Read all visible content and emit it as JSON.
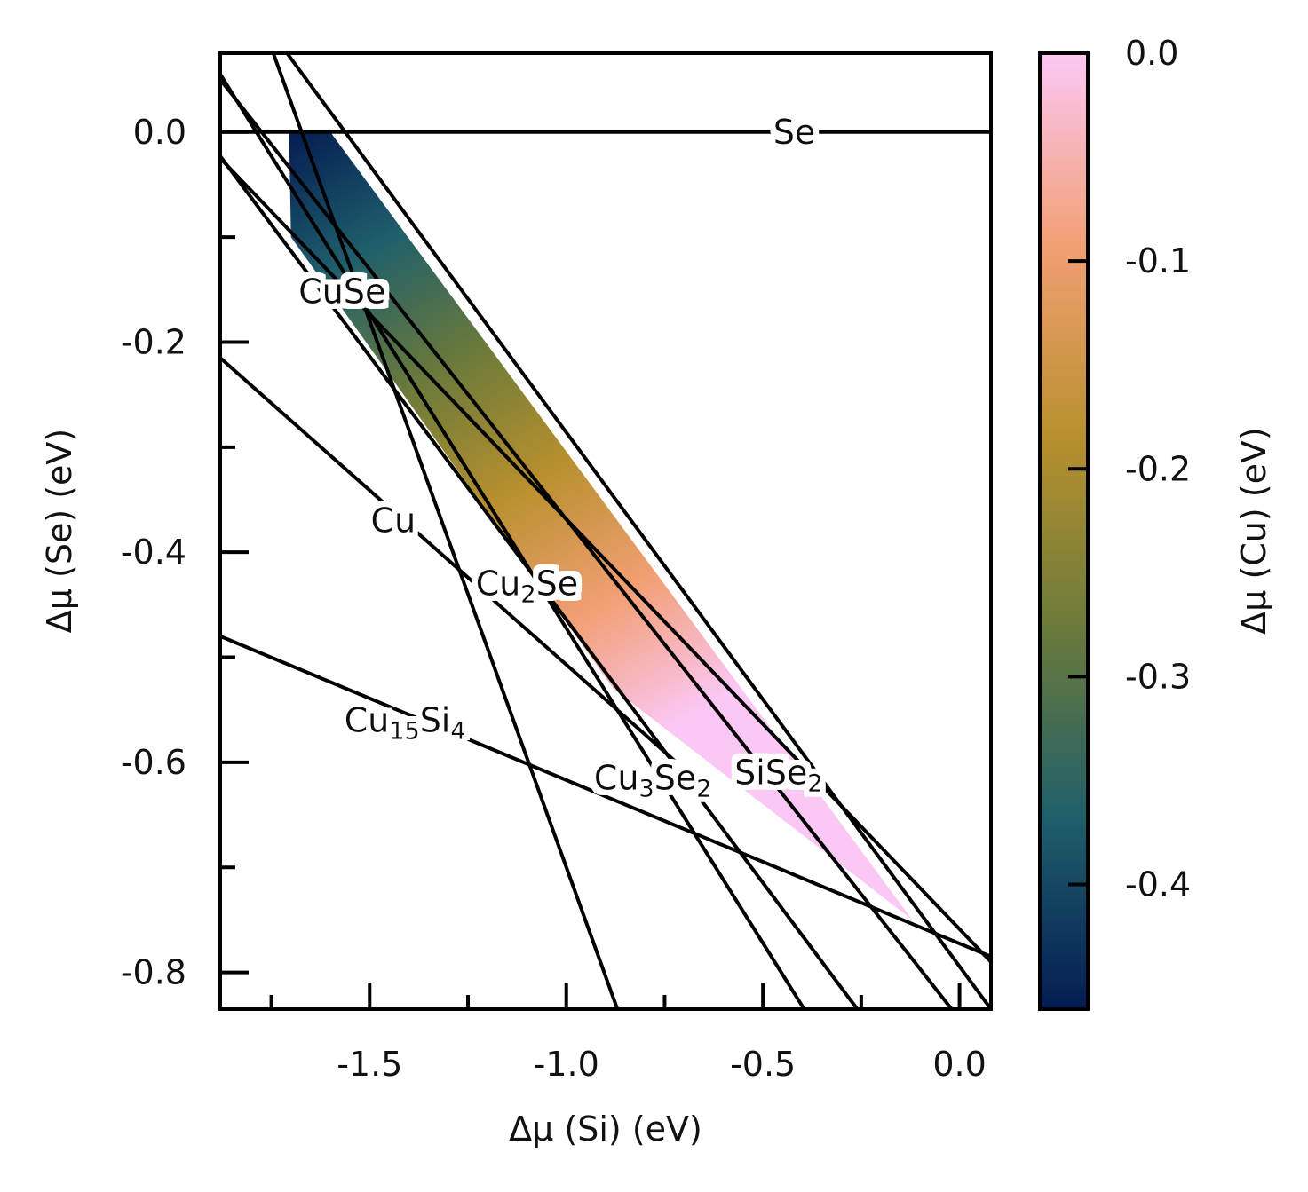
{
  "chart_data": {
    "type": "line",
    "xlabel": "Δμ (Si) (eV)",
    "ylabel": "Δμ (Se) (eV)",
    "colorbar_label": "Δμ (Cu) (eV)",
    "xlim": [
      -1.88,
      0.08
    ],
    "ylim": [
      -0.835,
      0.075
    ],
    "clim": [
      -0.46,
      0.0
    ],
    "colorbar_stops": [
      "#041c52",
      "#1f5f6b",
      "#6b7a3a",
      "#b8902e",
      "#f29f74",
      "#fbc8f6"
    ],
    "x_ticks": [
      {
        "value": -1.5,
        "label": "-1.5"
      },
      {
        "value": -1.0,
        "label": "-1.0"
      },
      {
        "value": -0.5,
        "label": "-0.5"
      },
      {
        "value": 0.0,
        "label": "0.0"
      }
    ],
    "x_minor_ticks": [
      -1.75,
      -1.25,
      -0.75,
      -0.25
    ],
    "y_ticks": [
      {
        "value": 0.0,
        "label": "0.0"
      },
      {
        "value": -0.2,
        "label": "-0.2"
      },
      {
        "value": -0.4,
        "label": "-0.4"
      },
      {
        "value": -0.6,
        "label": "-0.6"
      },
      {
        "value": -0.8,
        "label": "-0.8"
      }
    ],
    "y_minor_ticks": [
      -0.1,
      -0.3,
      -0.5,
      -0.7
    ],
    "colorbar_ticks": [
      {
        "value": 0.0,
        "label": "0.0"
      },
      {
        "value": -0.1,
        "label": "-0.1"
      },
      {
        "value": -0.2,
        "label": "-0.2"
      },
      {
        "value": -0.3,
        "label": "-0.3"
      },
      {
        "value": -0.4,
        "label": "-0.4"
      }
    ],
    "region": {
      "vertices": [
        [
          -1.705,
          0.0
        ],
        [
          -1.6,
          0.0
        ],
        [
          -0.12,
          -0.75
        ],
        [
          -0.88,
          -0.53
        ],
        [
          -1.7,
          -0.1
        ]
      ]
    },
    "lines": [
      {
        "name": "Se",
        "label_parts": [
          {
            "t": "Se",
            "sub": false
          }
        ],
        "p1": [
          -1.88,
          0.0
        ],
        "p2": [
          0.08,
          0.0
        ],
        "label_at": [
          -0.42,
          0.0
        ]
      },
      {
        "name": "CuSe",
        "label_parts": [
          {
            "t": "CuSe",
            "sub": false
          }
        ],
        "p1": [
          -1.88,
          -0.025
        ],
        "p2": [
          0.08,
          -0.79
        ],
        "label_at": [
          -1.57,
          -0.152
        ]
      },
      {
        "name": "Cu",
        "label_parts": [
          {
            "t": "Cu",
            "sub": false
          }
        ],
        "p1": [
          -1.88,
          -0.215
        ],
        "p2": [
          -0.72,
          -0.6
        ],
        "label_at": [
          -1.44,
          -0.37
        ]
      },
      {
        "name": "Cu2Se",
        "label_parts": [
          {
            "t": "Cu",
            "sub": false
          },
          {
            "t": "2",
            "sub": true
          },
          {
            "t": "Se",
            "sub": false
          }
        ],
        "p1": [
          -1.88,
          0.05
        ],
        "p2": [
          -0.02,
          -0.835
        ],
        "label_at": [
          -1.1,
          -0.43
        ]
      },
      {
        "name": "Cu15Si4",
        "label_parts": [
          {
            "t": "Cu",
            "sub": false
          },
          {
            "t": "15",
            "sub": true
          },
          {
            "t": "Si",
            "sub": false
          },
          {
            "t": "4",
            "sub": true
          }
        ],
        "p1": [
          -1.88,
          -0.48
        ],
        "p2": [
          0.08,
          -0.785
        ],
        "label_at": [
          -1.41,
          -0.56
        ]
      },
      {
        "name": "Cu3Se2",
        "label_parts": [
          {
            "t": "Cu",
            "sub": false
          },
          {
            "t": "3",
            "sub": true
          },
          {
            "t": "Se",
            "sub": false
          },
          {
            "t": "2",
            "sub": true
          }
        ],
        "p1": [
          -1.745,
          0.075
        ],
        "p2": [
          -0.87,
          -0.835
        ],
        "label_at": [
          -0.78,
          -0.615
        ]
      },
      {
        "name": "SiSe2",
        "label_parts": [
          {
            "t": "SiSe",
            "sub": false
          },
          {
            "t": "2",
            "sub": true
          }
        ],
        "p1": [
          -1.71,
          0.075
        ],
        "p2": [
          0.08,
          -0.835
        ],
        "label_at": [
          -0.46,
          -0.61
        ]
      },
      {
        "name": "extra-1",
        "label_parts": [],
        "p1": [
          -1.88,
          0.055
        ],
        "p2": [
          -0.395,
          -0.835
        ],
        "label_at": null
      },
      {
        "name": "extra-2",
        "label_parts": [],
        "p1": [
          -1.88,
          -0.023
        ],
        "p2": [
          -0.26,
          -0.835
        ],
        "label_at": null
      }
    ]
  }
}
